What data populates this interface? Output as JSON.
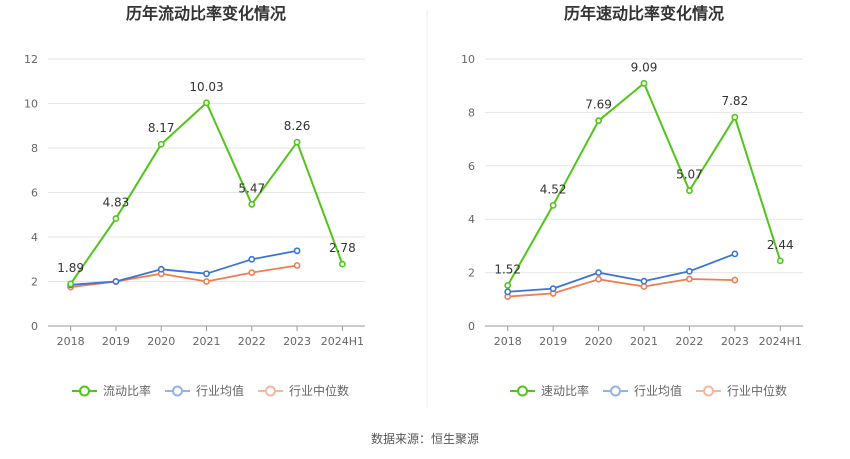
{
  "footer": {
    "source": "数据来源：恒生聚源"
  },
  "chart_data": [
    {
      "type": "line",
      "title": "历年流动比率变化情况",
      "categories": [
        "2018",
        "2019",
        "2020",
        "2021",
        "2022",
        "2023",
        "2024H1"
      ],
      "ylim": [
        0,
        12
      ],
      "yticks": [
        0,
        2,
        4,
        6,
        8,
        10,
        12
      ],
      "grid": true,
      "legend_position": "bottom",
      "series": [
        {
          "name": "流动比率",
          "color": "#52c41a",
          "values": [
            1.89,
            4.83,
            8.17,
            10.03,
            5.47,
            8.26,
            2.78
          ],
          "labels": [
            "1.89",
            "4.83",
            "8.17",
            "10.03",
            "5.47",
            "8.26",
            "2.78"
          ]
        },
        {
          "name": "行业均值",
          "color": "#3a75d6",
          "values": [
            1.85,
            2.0,
            2.55,
            2.35,
            3.0,
            3.38,
            null
          ]
        },
        {
          "name": "行业中位数",
          "color": "#f07c50",
          "values": [
            1.75,
            2.0,
            2.35,
            2.0,
            2.4,
            2.72,
            null
          ]
        }
      ]
    },
    {
      "type": "line",
      "title": "历年速动比率变化情况",
      "categories": [
        "2018",
        "2019",
        "2020",
        "2021",
        "2022",
        "2023",
        "2024H1"
      ],
      "ylim": [
        0,
        10
      ],
      "yticks": [
        0,
        2,
        4,
        6,
        8,
        10
      ],
      "grid": true,
      "legend_position": "bottom",
      "series": [
        {
          "name": "速动比率",
          "color": "#52c41a",
          "values": [
            1.52,
            4.52,
            7.69,
            9.09,
            5.07,
            7.82,
            2.44
          ],
          "labels": [
            "1.52",
            "4.52",
            "7.69",
            "9.09",
            "5.07",
            "7.82",
            "2.44"
          ]
        },
        {
          "name": "行业均值",
          "color": "#3a75d6",
          "values": [
            1.28,
            1.4,
            2.0,
            1.68,
            2.05,
            2.7,
            null
          ]
        },
        {
          "name": "行业中位数",
          "color": "#f07c50",
          "values": [
            1.1,
            1.22,
            1.75,
            1.48,
            1.76,
            1.72,
            null
          ]
        }
      ]
    }
  ]
}
